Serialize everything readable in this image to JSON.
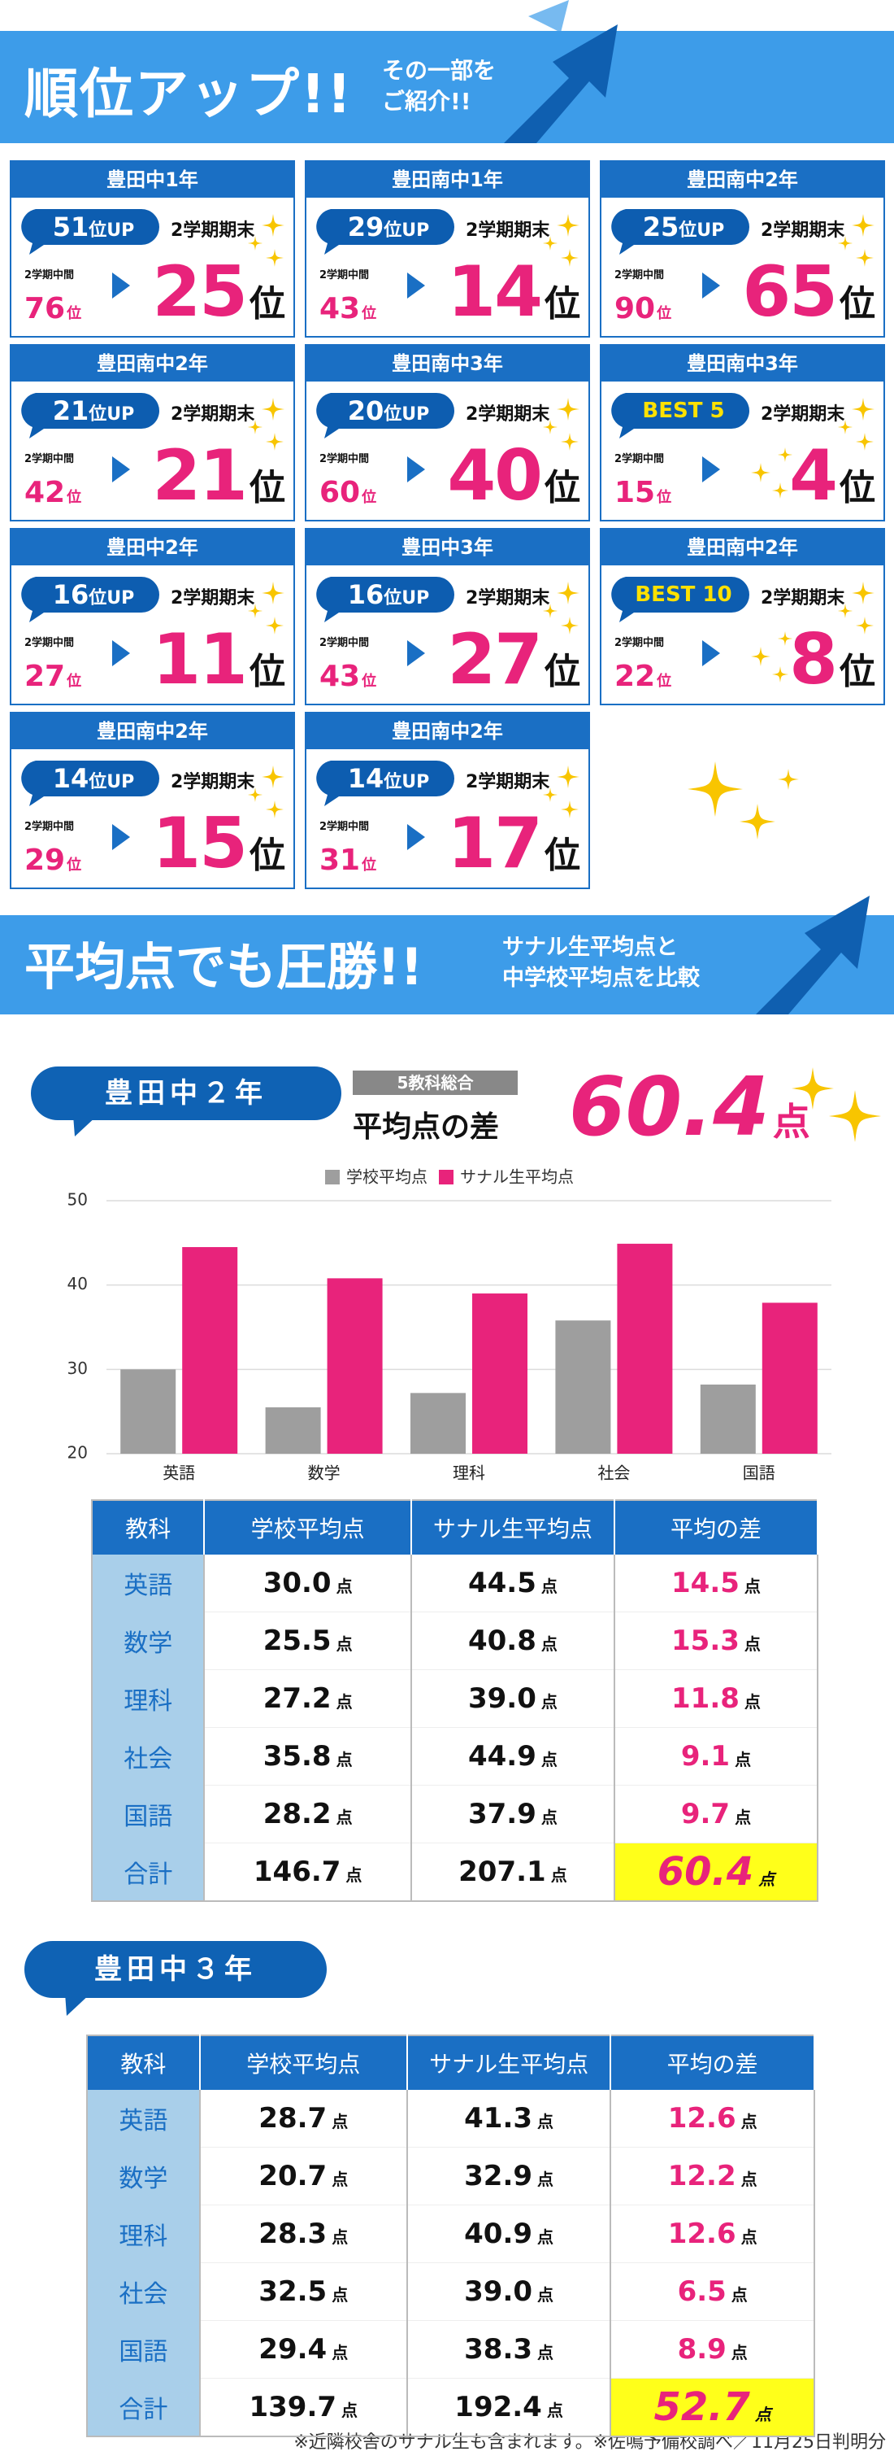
{
  "banner1": {
    "title": "順位アップ!!",
    "subtitle_lines": [
      "その一部を",
      "ご紹介!!"
    ]
  },
  "rank_unit": "位",
  "cards": [
    {
      "school": "豊田中1年",
      "badge": [
        "51",
        "位UP"
      ],
      "final_label": "2学期期末",
      "mid_label": "2学期中間",
      "mid_rank": "76",
      "final_rank": "25"
    },
    {
      "school": "豊田南中1年",
      "badge": [
        "29",
        "位UP"
      ],
      "final_label": "2学期期末",
      "mid_label": "2学期中間",
      "mid_rank": "43",
      "final_rank": "14"
    },
    {
      "school": "豊田南中2年",
      "badge": [
        "25",
        "位UP"
      ],
      "final_label": "2学期期末",
      "mid_label": "2学期中間",
      "mid_rank": "90",
      "final_rank": "65"
    },
    {
      "school": "豊田南中2年",
      "badge": [
        "21",
        "位UP"
      ],
      "final_label": "2学期期末",
      "mid_label": "2学期中間",
      "mid_rank": "42",
      "final_rank": "21"
    },
    {
      "school": "豊田南中3年",
      "badge": [
        "20",
        "位UP"
      ],
      "final_label": "2学期期末",
      "mid_label": "2学期中間",
      "mid_rank": "60",
      "final_rank": "40"
    },
    {
      "school": "豊田南中3年",
      "badge": [
        "BEST 5"
      ],
      "final_label": "2学期期末",
      "mid_label": "2学期中間",
      "mid_rank": "15",
      "final_rank": "4"
    },
    {
      "school": "豊田中2年",
      "badge": [
        "16",
        "位UP"
      ],
      "final_label": "2学期期末",
      "mid_label": "2学期中間",
      "mid_rank": "27",
      "final_rank": "11"
    },
    {
      "school": "豊田中3年",
      "badge": [
        "16",
        "位UP"
      ],
      "final_label": "2学期期末",
      "mid_label": "2学期中間",
      "mid_rank": "43",
      "final_rank": "27"
    },
    {
      "school": "豊田南中2年",
      "badge": [
        "BEST 10"
      ],
      "final_label": "2学期期末",
      "mid_label": "2学期中間",
      "mid_rank": "22",
      "final_rank": "8"
    },
    {
      "school": "豊田南中2年",
      "badge": [
        "14",
        "位UP"
      ],
      "final_label": "2学期期末",
      "mid_label": "2学期中間",
      "mid_rank": "29",
      "final_rank": "15"
    },
    {
      "school": "豊田南中2年",
      "badge": [
        "14",
        "位UP"
      ],
      "final_label": "2学期期末",
      "mid_label": "2学期中間",
      "mid_rank": "31",
      "final_rank": "17"
    }
  ],
  "banner2": {
    "title": "平均点でも圧勝!!",
    "subtitle_lines": [
      "サナル生平均点と",
      "中学校平均点を比較"
    ]
  },
  "grade2": {
    "label": "豊田中２年",
    "summary_tag": "5教科総合",
    "summary_label": "平均点の差",
    "summary_value": "60.4",
    "summary_unit": "点",
    "chart_data": {
      "type": "bar",
      "categories": [
        "英語",
        "数学",
        "理科",
        "社会",
        "国語"
      ],
      "series": [
        {
          "name": "学校平均点",
          "color": "#9e9e9e",
          "values": [
            30.0,
            25.5,
            27.2,
            35.8,
            28.2
          ]
        },
        {
          "name": "サナル生平均点",
          "color": "#e8237b",
          "values": [
            44.5,
            40.8,
            39.0,
            44.9,
            37.9
          ]
        }
      ],
      "ylim": [
        20,
        50
      ],
      "yticks": [
        20,
        30,
        40,
        50
      ],
      "grid": true,
      "legend": "top"
    },
    "table": {
      "header": [
        "教科",
        "学校平均点",
        "サナル生平均点",
        "平均の差"
      ],
      "unit": "点",
      "rows": [
        [
          "英語",
          "30.0",
          "44.5",
          "14.5"
        ],
        [
          "数学",
          "25.5",
          "40.8",
          "15.3"
        ],
        [
          "理科",
          "27.2",
          "39.0",
          "11.8"
        ],
        [
          "社会",
          "35.8",
          "44.9",
          "9.1"
        ],
        [
          "国語",
          "28.2",
          "37.9",
          "9.7"
        ],
        [
          "合計",
          "146.7",
          "207.1",
          "60.4"
        ]
      ]
    }
  },
  "grade3": {
    "label": "豊田中３年",
    "table": {
      "header": [
        "教科",
        "学校平均点",
        "サナル生平均点",
        "平均の差"
      ],
      "unit": "点",
      "rows": [
        [
          "英語",
          "28.7",
          "41.3",
          "12.6"
        ],
        [
          "数学",
          "20.7",
          "32.9",
          "12.2"
        ],
        [
          "理科",
          "28.3",
          "40.9",
          "12.6"
        ],
        [
          "社会",
          "32.5",
          "39.0",
          "6.5"
        ],
        [
          "国語",
          "29.4",
          "38.3",
          "8.9"
        ],
        [
          "合計",
          "139.7",
          "192.4",
          "52.7"
        ]
      ]
    }
  },
  "footnote": "※近隣校舎のサナル生も含まれます。※佐鳴予備校調べ／11月25日判明分"
}
